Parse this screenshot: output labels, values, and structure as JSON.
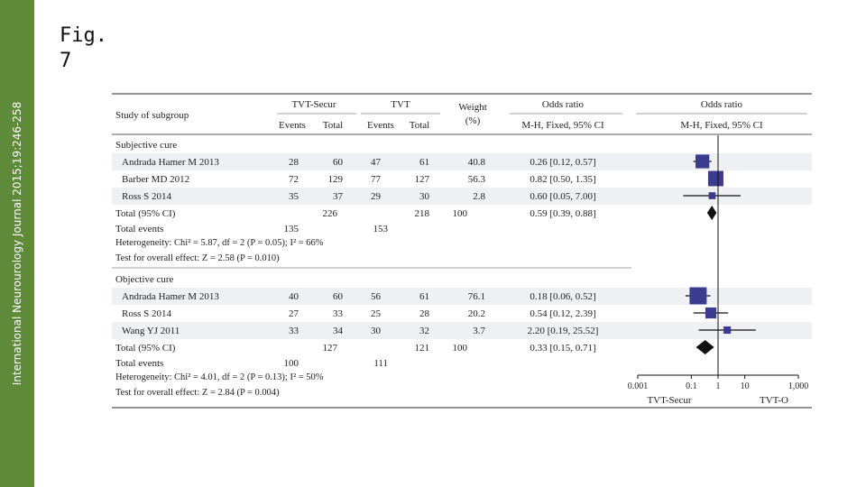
{
  "sidebar": {
    "journal_citation": "International Neurourology Journal 2015;19:246-258"
  },
  "figure": {
    "label": "Fig.\n7",
    "header": {
      "study_col": "Study of subgroup",
      "group1": "TVT-Secur",
      "group2": "TVT",
      "events": "Events",
      "total": "Total",
      "weight": "Weight",
      "weight_unit": "(%)",
      "or_text": "Odds ratio",
      "or_text_method": "M-H, Fixed, 95% CI",
      "or_plot": "Odds ratio",
      "or_plot_method": "M-H, Fixed, 95% CI"
    },
    "axis": {
      "ticks": [
        "0.001",
        "0.1",
        "1",
        "10",
        "1,000"
      ],
      "favours_left": "TVT-Secur",
      "favours_right": "TVT-O"
    }
  },
  "chart_data": {
    "type": "forest",
    "x_scale": "log",
    "xlim": [
      0.001,
      1000
    ],
    "reference_line": 1,
    "subgroups": [
      {
        "name": "Subjective cure",
        "studies": [
          {
            "study": "Andrada Hamer M 2013",
            "e1": "28",
            "t1": "60",
            "e2": "47",
            "t2": "61",
            "weight": "40.8",
            "ci_text": "0.26 [0.12, 0.57]",
            "or": 0.26,
            "lo": 0.12,
            "hi": 0.57,
            "w": 40.8
          },
          {
            "study": "Barber MD 2012",
            "e1": "72",
            "t1": "129",
            "e2": "77",
            "t2": "127",
            "weight": "56.3",
            "ci_text": "0.82 [0.50, 1.35]",
            "or": 0.82,
            "lo": 0.5,
            "hi": 1.35,
            "w": 56.3
          },
          {
            "study": "Ross S 2014",
            "e1": "35",
            "t1": "37",
            "e2": "29",
            "t2": "30",
            "weight": "2.8",
            "ci_text": "0.60 [0.05, 7.00]",
            "or": 0.6,
            "lo": 0.05,
            "hi": 7.0,
            "w": 2.8
          }
        ],
        "total": {
          "label": "Total (95% CI)",
          "t1": "226",
          "t2": "218",
          "weight": "100",
          "ci_text": "0.59 [0.39, 0.88]",
          "or": 0.59,
          "lo": 0.39,
          "hi": 0.88
        },
        "events": {
          "label": "Total events",
          "e1": "135",
          "e2": "153"
        },
        "heterogeneity": "Heterogeneity: Chi² = 5.87, df = 2 (P = 0.05); I² = 66%",
        "overall": "Test for overall effect: Z = 2.58 (P = 0.010)"
      },
      {
        "name": "Objective cure",
        "studies": [
          {
            "study": "Andrada Hamer M 2013",
            "e1": "40",
            "t1": "60",
            "e2": "56",
            "t2": "61",
            "weight": "76.1",
            "ci_text": "0.18 [0.06, 0.52]",
            "or": 0.18,
            "lo": 0.06,
            "hi": 0.52,
            "w": 76.1
          },
          {
            "study": "Ross S 2014",
            "e1": "27",
            "t1": "33",
            "e2": "25",
            "t2": "28",
            "weight": "20.2",
            "ci_text": "0.54 [0.12, 2.39]",
            "or": 0.54,
            "lo": 0.12,
            "hi": 2.39,
            "w": 20.2
          },
          {
            "study": "Wang YJ 2011",
            "e1": "33",
            "t1": "34",
            "e2": "30",
            "t2": "32",
            "weight": "3.7",
            "ci_text": "2.20 [0.19, 25.52]",
            "or": 2.2,
            "lo": 0.19,
            "hi": 25.52,
            "w": 3.7
          }
        ],
        "total": {
          "label": "Total (95% CI)",
          "t1": "127",
          "t2": "121",
          "weight": "100",
          "ci_text": "0.33 [0.15, 0.71]",
          "or": 0.33,
          "lo": 0.15,
          "hi": 0.71
        },
        "events": {
          "label": "Total events",
          "e1": "100",
          "e2": "111"
        },
        "heterogeneity": "Heterogeneity: Chi² = 4.01, df = 2 (P = 0.13); I² = 50%",
        "overall": "Test for overall effect: Z = 2.84 (P = 0.004)"
      }
    ],
    "colors": {
      "marker": "#3b3b8f",
      "diamond": "#111111",
      "row_stripe": "#eef0f4",
      "sidebar": "#5f8a3a"
    }
  }
}
